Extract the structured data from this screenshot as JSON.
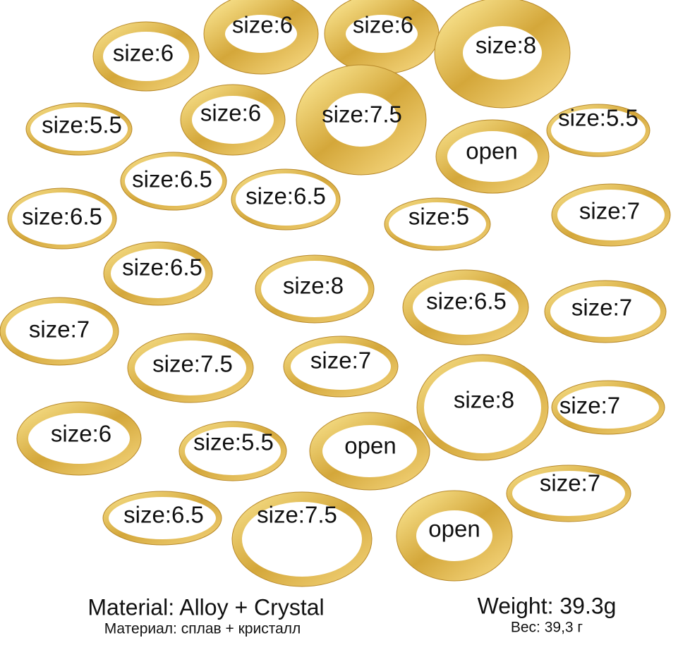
{
  "rings": [
    "size:6",
    "size:6",
    "size:6",
    "size:8",
    "size:5.5",
    "size:6",
    "size:7.5",
    "open",
    "size:5.5",
    "size:6.5",
    "size:6.5",
    "size:6.5",
    "size:5",
    "size:7",
    "size:6.5",
    "size:8",
    "size:6.5",
    "size:7",
    "size:7",
    "size:7.5",
    "size:7",
    "size:8",
    "size:7",
    "size:6",
    "size:5.5",
    "open",
    "size:7",
    "size:6.5",
    "size:7.5",
    "open"
  ],
  "footer": {
    "material_en": "Material: Alloy + Crystal",
    "material_ru": "Материал: сплав + кристалл",
    "weight_en": "Weight: 39.3g",
    "weight_ru": "Вес: 39,3 г"
  }
}
